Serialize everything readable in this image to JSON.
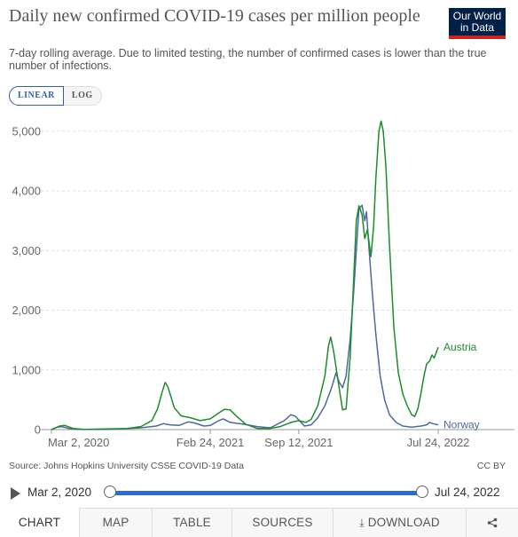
{
  "header": {
    "title": "Daily new confirmed COVID-19 cases per million people",
    "subtitle": "7-day rolling average. Due to limited testing, the number of confirmed cases is lower than the true number of infections.",
    "logo_line1": "Our World",
    "logo_line2": "in Data"
  },
  "scale_toggle": {
    "linear": "LINEAR",
    "log": "LOG",
    "selected": "LINEAR"
  },
  "chart_data": {
    "type": "line",
    "title": "Daily new confirmed COVID-19 cases per million people",
    "ylim": [
      0,
      5200
    ],
    "y_ticks": [
      0,
      1000,
      2000,
      3000,
      4000,
      5000
    ],
    "y_tick_labels": [
      "0",
      "1,000",
      "2,000",
      "3,000",
      "4,000",
      "5,000"
    ],
    "x_range": [
      "2020-03-02",
      "2022-07-24"
    ],
    "x_tick_labels": [
      "Mar 2, 2020",
      "Feb 24, 2021",
      "Sep 12, 2021",
      "Jul 24, 2022"
    ],
    "x_tick_dates": [
      "2020-03-02",
      "2021-02-24",
      "2021-09-12",
      "2022-07-24"
    ],
    "grid": "horizontal dashed",
    "legend": "inline labels at line ends",
    "series": [
      {
        "name": "Austria",
        "color": "#1d8b2d",
        "points": [
          [
            "2020-03-02",
            0
          ],
          [
            "2020-03-20",
            60
          ],
          [
            "2020-04-01",
            70
          ],
          [
            "2020-04-20",
            20
          ],
          [
            "2020-05-15",
            5
          ],
          [
            "2020-07-01",
            10
          ],
          [
            "2020-08-20",
            20
          ],
          [
            "2020-09-20",
            50
          ],
          [
            "2020-10-15",
            150
          ],
          [
            "2020-10-28",
            350
          ],
          [
            "2020-11-08",
            650
          ],
          [
            "2020-11-14",
            790
          ],
          [
            "2020-11-20",
            720
          ],
          [
            "2020-12-05",
            360
          ],
          [
            "2020-12-20",
            230
          ],
          [
            "2021-01-10",
            200
          ],
          [
            "2021-02-01",
            150
          ],
          [
            "2021-02-24",
            180
          ],
          [
            "2021-03-15",
            280
          ],
          [
            "2021-03-28",
            340
          ],
          [
            "2021-04-10",
            330
          ],
          [
            "2021-04-25",
            220
          ],
          [
            "2021-05-15",
            90
          ],
          [
            "2021-06-10",
            20
          ],
          [
            "2021-07-10",
            20
          ],
          [
            "2021-08-01",
            50
          ],
          [
            "2021-08-25",
            120
          ],
          [
            "2021-09-12",
            150
          ],
          [
            "2021-09-28",
            120
          ],
          [
            "2021-10-10",
            170
          ],
          [
            "2021-10-25",
            400
          ],
          [
            "2021-11-10",
            900
          ],
          [
            "2021-11-18",
            1400
          ],
          [
            "2021-11-23",
            1550
          ],
          [
            "2021-11-30",
            1300
          ],
          [
            "2021-12-10",
            800
          ],
          [
            "2021-12-20",
            330
          ],
          [
            "2021-12-28",
            350
          ],
          [
            "2022-01-06",
            1200
          ],
          [
            "2022-01-14",
            2500
          ],
          [
            "2022-01-20",
            3500
          ],
          [
            "2022-01-26",
            3750
          ],
          [
            "2022-02-02",
            3600
          ],
          [
            "2022-02-08",
            3200
          ],
          [
            "2022-02-14",
            3350
          ],
          [
            "2022-02-22",
            2900
          ],
          [
            "2022-02-28",
            3400
          ],
          [
            "2022-03-05",
            4200
          ],
          [
            "2022-03-12",
            5000
          ],
          [
            "2022-03-17",
            5170
          ],
          [
            "2022-03-22",
            5000
          ],
          [
            "2022-03-28",
            4400
          ],
          [
            "2022-04-05",
            3100
          ],
          [
            "2022-04-15",
            1700
          ],
          [
            "2022-04-25",
            950
          ],
          [
            "2022-05-05",
            600
          ],
          [
            "2022-05-15",
            400
          ],
          [
            "2022-05-25",
            250
          ],
          [
            "2022-06-01",
            220
          ],
          [
            "2022-06-08",
            350
          ],
          [
            "2022-06-15",
            600
          ],
          [
            "2022-06-22",
            900
          ],
          [
            "2022-06-28",
            1100
          ],
          [
            "2022-07-05",
            1150
          ],
          [
            "2022-07-10",
            1250
          ],
          [
            "2022-07-15",
            1200
          ],
          [
            "2022-07-20",
            1300
          ],
          [
            "2022-07-24",
            1380
          ]
        ]
      },
      {
        "name": "Norway",
        "color": "#4c6a9c",
        "points": [
          [
            "2020-03-02",
            0
          ],
          [
            "2020-03-15",
            40
          ],
          [
            "2020-03-25",
            50
          ],
          [
            "2020-04-10",
            20
          ],
          [
            "2020-05-01",
            5
          ],
          [
            "2020-07-01",
            5
          ],
          [
            "2020-08-15",
            15
          ],
          [
            "2020-09-20",
            30
          ],
          [
            "2020-10-25",
            60
          ],
          [
            "2020-11-10",
            100
          ],
          [
            "2020-11-25",
            80
          ],
          [
            "2020-12-15",
            70
          ],
          [
            "2021-01-05",
            130
          ],
          [
            "2021-01-20",
            110
          ],
          [
            "2021-02-10",
            60
          ],
          [
            "2021-02-24",
            70
          ],
          [
            "2021-03-15",
            150
          ],
          [
            "2021-03-25",
            180
          ],
          [
            "2021-04-10",
            120
          ],
          [
            "2021-05-10",
            90
          ],
          [
            "2021-06-10",
            50
          ],
          [
            "2021-07-10",
            30
          ],
          [
            "2021-08-10",
            150
          ],
          [
            "2021-08-25",
            250
          ],
          [
            "2021-09-05",
            220
          ],
          [
            "2021-09-12",
            160
          ],
          [
            "2021-09-25",
            60
          ],
          [
            "2021-10-10",
            80
          ],
          [
            "2021-10-25",
            200
          ],
          [
            "2021-11-10",
            400
          ],
          [
            "2021-11-25",
            700
          ],
          [
            "2021-12-05",
            950
          ],
          [
            "2021-12-12",
            800
          ],
          [
            "2021-12-20",
            700
          ],
          [
            "2021-12-28",
            900
          ],
          [
            "2022-01-06",
            1500
          ],
          [
            "2022-01-14",
            2300
          ],
          [
            "2022-01-20",
            3000
          ],
          [
            "2022-01-26",
            3700
          ],
          [
            "2022-02-02",
            3760
          ],
          [
            "2022-02-08",
            3500
          ],
          [
            "2022-02-12",
            3650
          ],
          [
            "2022-02-18",
            3000
          ],
          [
            "2022-02-25",
            2300
          ],
          [
            "2022-03-05",
            1600
          ],
          [
            "2022-03-15",
            900
          ],
          [
            "2022-03-25",
            500
          ],
          [
            "2022-04-05",
            250
          ],
          [
            "2022-04-20",
            120
          ],
          [
            "2022-05-05",
            60
          ],
          [
            "2022-05-25",
            40
          ],
          [
            "2022-06-15",
            60
          ],
          [
            "2022-06-28",
            80
          ],
          [
            "2022-07-05",
            120
          ],
          [
            "2022-07-12",
            100
          ],
          [
            "2022-07-24",
            80
          ]
        ]
      }
    ]
  },
  "footer": {
    "source": "Source: Johns Hopkins University CSSE COVID-19 Data",
    "license": "CC BY"
  },
  "timeline": {
    "start_label": "Mar 2, 2020",
    "end_label": "Jul 24, 2022",
    "start_fraction": 0,
    "end_fraction": 1
  },
  "tabs": [
    {
      "label": "CHART",
      "active": true
    },
    {
      "label": "MAP",
      "active": false
    },
    {
      "label": "TABLE",
      "active": false
    },
    {
      "label": "SOURCES",
      "active": false
    },
    {
      "label": "DOWNLOAD",
      "active": false
    },
    {
      "label": "",
      "icon": "share-icon",
      "active": false
    }
  ]
}
